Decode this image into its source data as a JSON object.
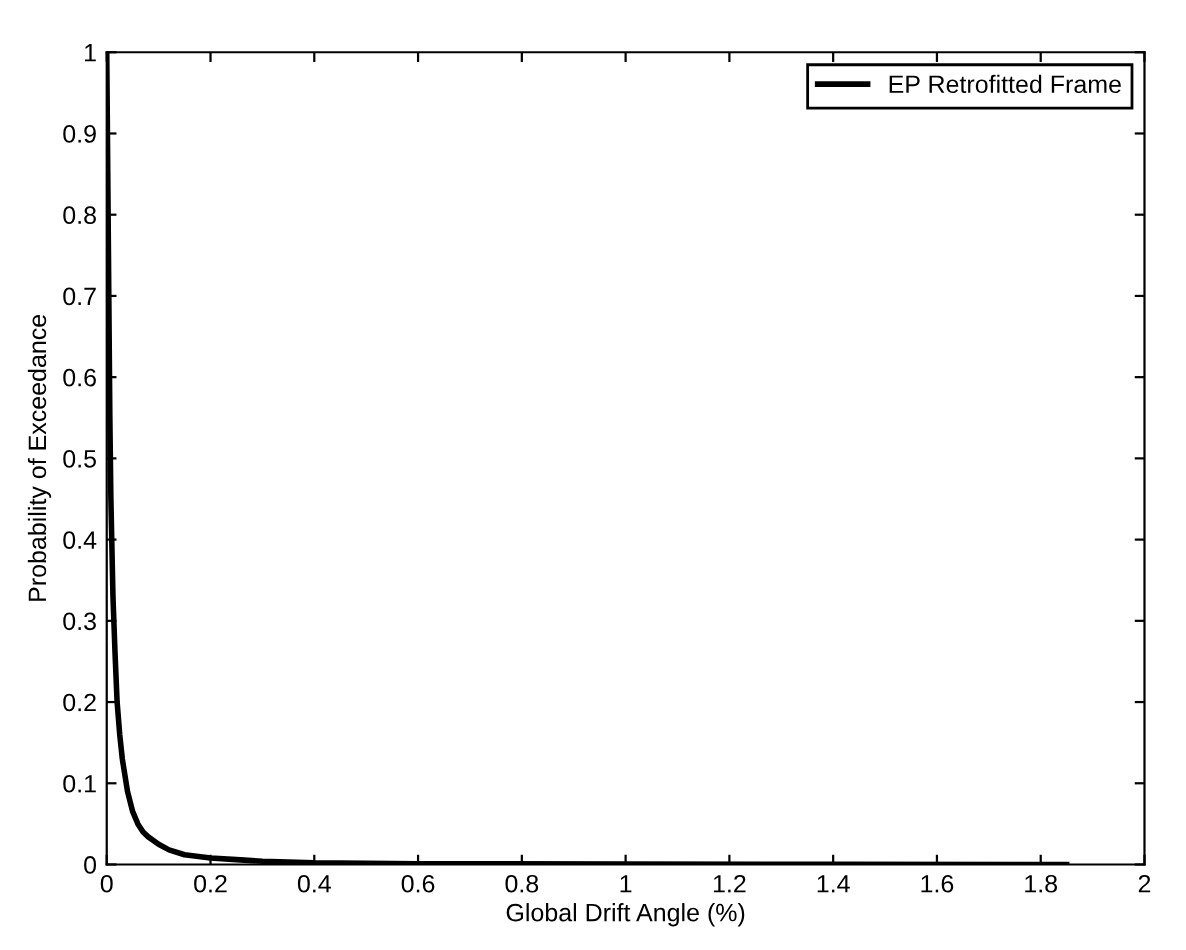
{
  "chart_data": {
    "type": "line",
    "xlabel": "Global Drift Angle (%)",
    "ylabel": "Probability of Exceedance",
    "series": [
      {
        "name": "EP Retrofitted Frame",
        "color": "#000000",
        "x": [
          0,
          0.002,
          0.004,
          0.006,
          0.008,
          0.012,
          0.016,
          0.02,
          0.025,
          0.03,
          0.04,
          0.05,
          0.06,
          0.07,
          0.08,
          0.1,
          0.12,
          0.15,
          0.2,
          0.25,
          0.3,
          0.4,
          0.6,
          1.0,
          1.4,
          1.85
        ],
        "values": [
          1,
          0.85,
          0.7,
          0.55,
          0.45,
          0.33,
          0.26,
          0.2,
          0.16,
          0.13,
          0.09,
          0.065,
          0.05,
          0.04,
          0.034,
          0.025,
          0.018,
          0.012,
          0.008,
          0.006,
          0.004,
          0.002,
          0.001,
          0.0005,
          0.0002,
          0
        ]
      }
    ],
    "xlim": [
      0,
      2
    ],
    "ylim": [
      0,
      1
    ],
    "xticks": [
      0,
      0.2,
      0.4,
      0.6,
      0.8,
      1,
      1.2,
      1.4,
      1.6,
      1.8,
      2
    ],
    "yticks": [
      0,
      0.1,
      0.2,
      0.3,
      0.4,
      0.5,
      0.6,
      0.7,
      0.8,
      0.9,
      1
    ],
    "legend": "top right",
    "grid": false,
    "line_style": "solid",
    "marker": "none"
  }
}
